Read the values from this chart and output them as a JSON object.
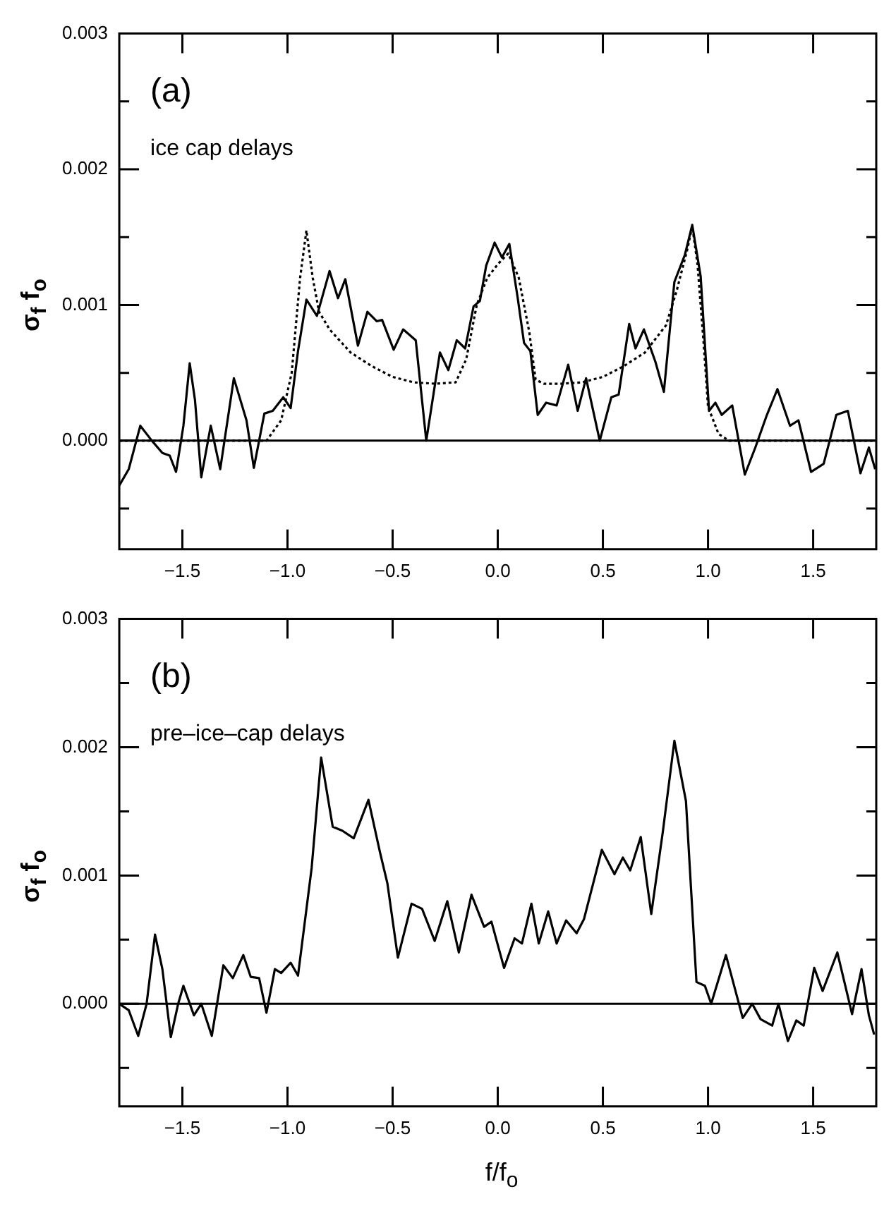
{
  "chart_data": [
    {
      "type": "line",
      "ylabel": "σ$_{f}$ f$_{o}$",
      "annotations": [
        "(a)",
        "ice cap delays"
      ],
      "xlim": [
        -1.8,
        1.8
      ],
      "xticks": [
        {
          "value": -1.5,
          "label": "−1.5"
        },
        {
          "value": -1,
          "label": "−1.0"
        },
        {
          "value": -0.5,
          "label": "−0.5"
        },
        {
          "value": 0,
          "label": "0.0"
        },
        {
          "value": 0.5,
          "label": "0.5"
        },
        {
          "value": 1,
          "label": "1.0"
        },
        {
          "value": 1.5,
          "label": "1.5"
        }
      ],
      "ylim": [
        -0.0008,
        0.003
      ],
      "yticks": [
        {
          "value": -0.0005,
          "label": null
        },
        {
          "value": 0,
          "label": "0.000"
        },
        {
          "value": 0.0005,
          "label": null
        },
        {
          "value": 0.001,
          "label": "0.001"
        },
        {
          "value": 0.0015,
          "label": null
        },
        {
          "value": 0.002,
          "label": "0.002"
        },
        {
          "value": 0.0025,
          "label": null
        },
        {
          "value": 0.003,
          "label": "0.003"
        }
      ],
      "grid": false,
      "legend": false,
      "marker": "none",
      "ref_lines": [
        {
          "axis": "y",
          "value": 0,
          "color": "#000000"
        }
      ],
      "series": [
        {
          "color": "#000000",
          "line_style": "solid",
          "x": [
            -1.8,
            -1.755,
            -1.7,
            -1.645,
            -1.595,
            -1.56,
            -1.53,
            -1.495,
            -1.465,
            -1.44,
            -1.41,
            -1.365,
            -1.32,
            -1.255,
            -1.195,
            -1.16,
            -1.11,
            -1.07,
            -1.02,
            -0.985,
            -0.95,
            -0.91,
            -0.86,
            -0.8,
            -0.76,
            -0.725,
            -0.665,
            -0.62,
            -0.575,
            -0.55,
            -0.495,
            -0.45,
            -0.39,
            -0.34,
            -0.275,
            -0.235,
            -0.195,
            -0.155,
            -0.115,
            -0.085,
            -0.055,
            -0.015,
            0.02,
            0.055,
            0.095,
            0.125,
            0.155,
            0.19,
            0.23,
            0.28,
            0.335,
            0.38,
            0.42,
            0.485,
            0.54,
            0.575,
            0.625,
            0.655,
            0.695,
            0.75,
            0.79,
            0.84,
            0.89,
            0.925,
            0.965,
            1.005,
            1.035,
            1.065,
            1.115,
            1.175,
            1.225,
            1.28,
            1.33,
            1.39,
            1.43,
            1.49,
            1.55,
            1.61,
            1.665,
            1.725,
            1.765,
            1.795
          ],
          "values": [
            -0.00033,
            -0.00021,
            0.00011,
            0,
            -9e-05,
            -0.00011,
            -0.00023,
            0.00011,
            0.00057,
            0.0003,
            -0.00027,
            0.00011,
            -0.00021,
            0.00046,
            0.00015,
            -0.0002,
            0.0002,
            0.00022,
            0.00032,
            0.00024,
            0.00066,
            0.00104,
            0.00092,
            0.00125,
            0.00105,
            0.00119,
            0.0007,
            0.00095,
            0.00088,
            0.00089,
            0.00067,
            0.00082,
            0.00074,
            0,
            0.00065,
            0.00052,
            0.00074,
            0.00068,
            0.00099,
            0.00103,
            0.00129,
            0.00146,
            0.00135,
            0.00145,
            0.00105,
            0.00072,
            0.00066,
            0.00019,
            0.00028,
            0.00026,
            0.00056,
            0.00022,
            0.00046,
            0,
            0.00032,
            0.00034,
            0.00086,
            0.00068,
            0.00082,
            0.00058,
            0.00036,
            0.00117,
            0.00137,
            0.00159,
            0.00121,
            0.00022,
            0.00028,
            0.00019,
            0.00026,
            -0.00025,
            -5e-05,
            0.00019,
            0.00038,
            0.00011,
            0.00015,
            -0.00023,
            -0.00017,
            0.00019,
            0.00022,
            -0.00024,
            -5e-05,
            -0.00021
          ]
        },
        {
          "color": "#000000",
          "line_style": "dotted",
          "x": [
            -1.8,
            -1.2,
            -1.1,
            -1.03,
            -0.98,
            -0.94,
            -0.91,
            -0.88,
            -0.85,
            -0.8,
            -0.7,
            -0.6,
            -0.5,
            -0.4,
            -0.3,
            -0.2,
            -0.15,
            -0.1,
            -0.05,
            0.0,
            0.05,
            0.1,
            0.15,
            0.18,
            0.22,
            0.3,
            0.4,
            0.5,
            0.6,
            0.7,
            0.8,
            0.85,
            0.9,
            0.925,
            0.95,
            0.98,
            1.0,
            1.05,
            1.1,
            1.2,
            1.8
          ],
          "values": [
            0,
            0,
            0,
            0.00015,
            0.0005,
            0.0012,
            0.00155,
            0.0012,
            0.00095,
            0.00082,
            0.00065,
            0.00055,
            0.00047,
            0.00043,
            0.00042,
            0.00043,
            0.0006,
            0.001,
            0.0012,
            0.0013,
            0.00138,
            0.0012,
            0.0008,
            0.00045,
            0.00042,
            0.00042,
            0.00043,
            0.00047,
            0.00055,
            0.00065,
            0.00085,
            0.0011,
            0.0014,
            0.00158,
            0.0013,
            0.0007,
            0.00025,
            5e-05,
            0,
            0,
            0
          ]
        }
      ]
    },
    {
      "type": "line",
      "ylabel": "σ$_{f}$ f$_{o}$",
      "xlabel": "f/f$_{o}$",
      "annotations": [
        "(b)",
        "pre–ice–cap delays"
      ],
      "xlim": [
        -1.8,
        1.8
      ],
      "xticks": [
        {
          "value": -1.5,
          "label": "−1.5"
        },
        {
          "value": -1,
          "label": "−1.0"
        },
        {
          "value": -0.5,
          "label": "−0.5"
        },
        {
          "value": 0,
          "label": "0.0"
        },
        {
          "value": 0.5,
          "label": "0.5"
        },
        {
          "value": 1,
          "label": "1.0"
        },
        {
          "value": 1.5,
          "label": "1.5"
        }
      ],
      "ylim": [
        -0.0008,
        0.003
      ],
      "yticks": [
        {
          "value": -0.0005,
          "label": null
        },
        {
          "value": 0,
          "label": "0.000"
        },
        {
          "value": 0.0005,
          "label": null
        },
        {
          "value": 0.001,
          "label": "0.001"
        },
        {
          "value": 0.0015,
          "label": null
        },
        {
          "value": 0.002,
          "label": "0.002"
        },
        {
          "value": 0.0025,
          "label": null
        },
        {
          "value": 0.003,
          "label": "0.003"
        }
      ],
      "grid": false,
      "legend": false,
      "marker": "none",
      "ref_lines": [
        {
          "axis": "y",
          "value": 0,
          "color": "#000000"
        }
      ],
      "series": [
        {
          "color": "#000000",
          "line_style": "solid",
          "x": [
            -1.8,
            -1.755,
            -1.71,
            -1.67,
            -1.63,
            -1.595,
            -1.555,
            -1.52,
            -1.495,
            -1.445,
            -1.41,
            -1.36,
            -1.305,
            -1.26,
            -1.21,
            -1.175,
            -1.135,
            -1.1,
            -1.06,
            -1.03,
            -0.985,
            -0.95,
            -0.885,
            -0.84,
            -0.785,
            -0.74,
            -0.685,
            -0.615,
            -0.56,
            -0.525,
            -0.475,
            -0.41,
            -0.36,
            -0.3,
            -0.24,
            -0.185,
            -0.125,
            -0.065,
            -0.03,
            0.03,
            0.08,
            0.115,
            0.16,
            0.195,
            0.24,
            0.28,
            0.325,
            0.375,
            0.41,
            0.495,
            0.555,
            0.595,
            0.63,
            0.68,
            0.73,
            0.785,
            0.84,
            0.895,
            0.945,
            0.985,
            1.015,
            1.085,
            1.165,
            1.21,
            1.25,
            1.305,
            1.335,
            1.38,
            1.42,
            1.455,
            1.505,
            1.545,
            1.615,
            1.685,
            1.73,
            1.765,
            1.79
          ],
          "values": [
            0,
            -5e-05,
            -0.00025,
            0,
            0.00054,
            0.00027,
            -0.00026,
            0,
            0.00014,
            -9e-05,
            0,
            -0.00025,
            0.0003,
            0.0002,
            0.00038,
            0.00021,
            0.0002,
            -7e-05,
            0.00027,
            0.00024,
            0.00032,
            0.00022,
            0.00106,
            0.00192,
            0.00138,
            0.00135,
            0.00129,
            0.00159,
            0.00118,
            0.00094,
            0.00036,
            0.00078,
            0.00074,
            0.00049,
            0.0008,
            0.0004,
            0.00085,
            0.0006,
            0.00064,
            0.00028,
            0.00051,
            0.00047,
            0.00078,
            0.00047,
            0.00072,
            0.00047,
            0.00065,
            0.00055,
            0.00066,
            0.0012,
            0.00101,
            0.00114,
            0.00104,
            0.0013,
            0.0007,
            0.00134,
            0.00205,
            0.00158,
            0.00017,
            0.00014,
            0,
            0.00038,
            -0.00011,
            0,
            -0.00012,
            -0.00017,
            0,
            -0.00029,
            -0.00013,
            -0.00017,
            0.00028,
            0.0001,
            0.0004,
            -8e-05,
            0.00027,
            -9e-05,
            -0.00024
          ]
        }
      ]
    }
  ]
}
